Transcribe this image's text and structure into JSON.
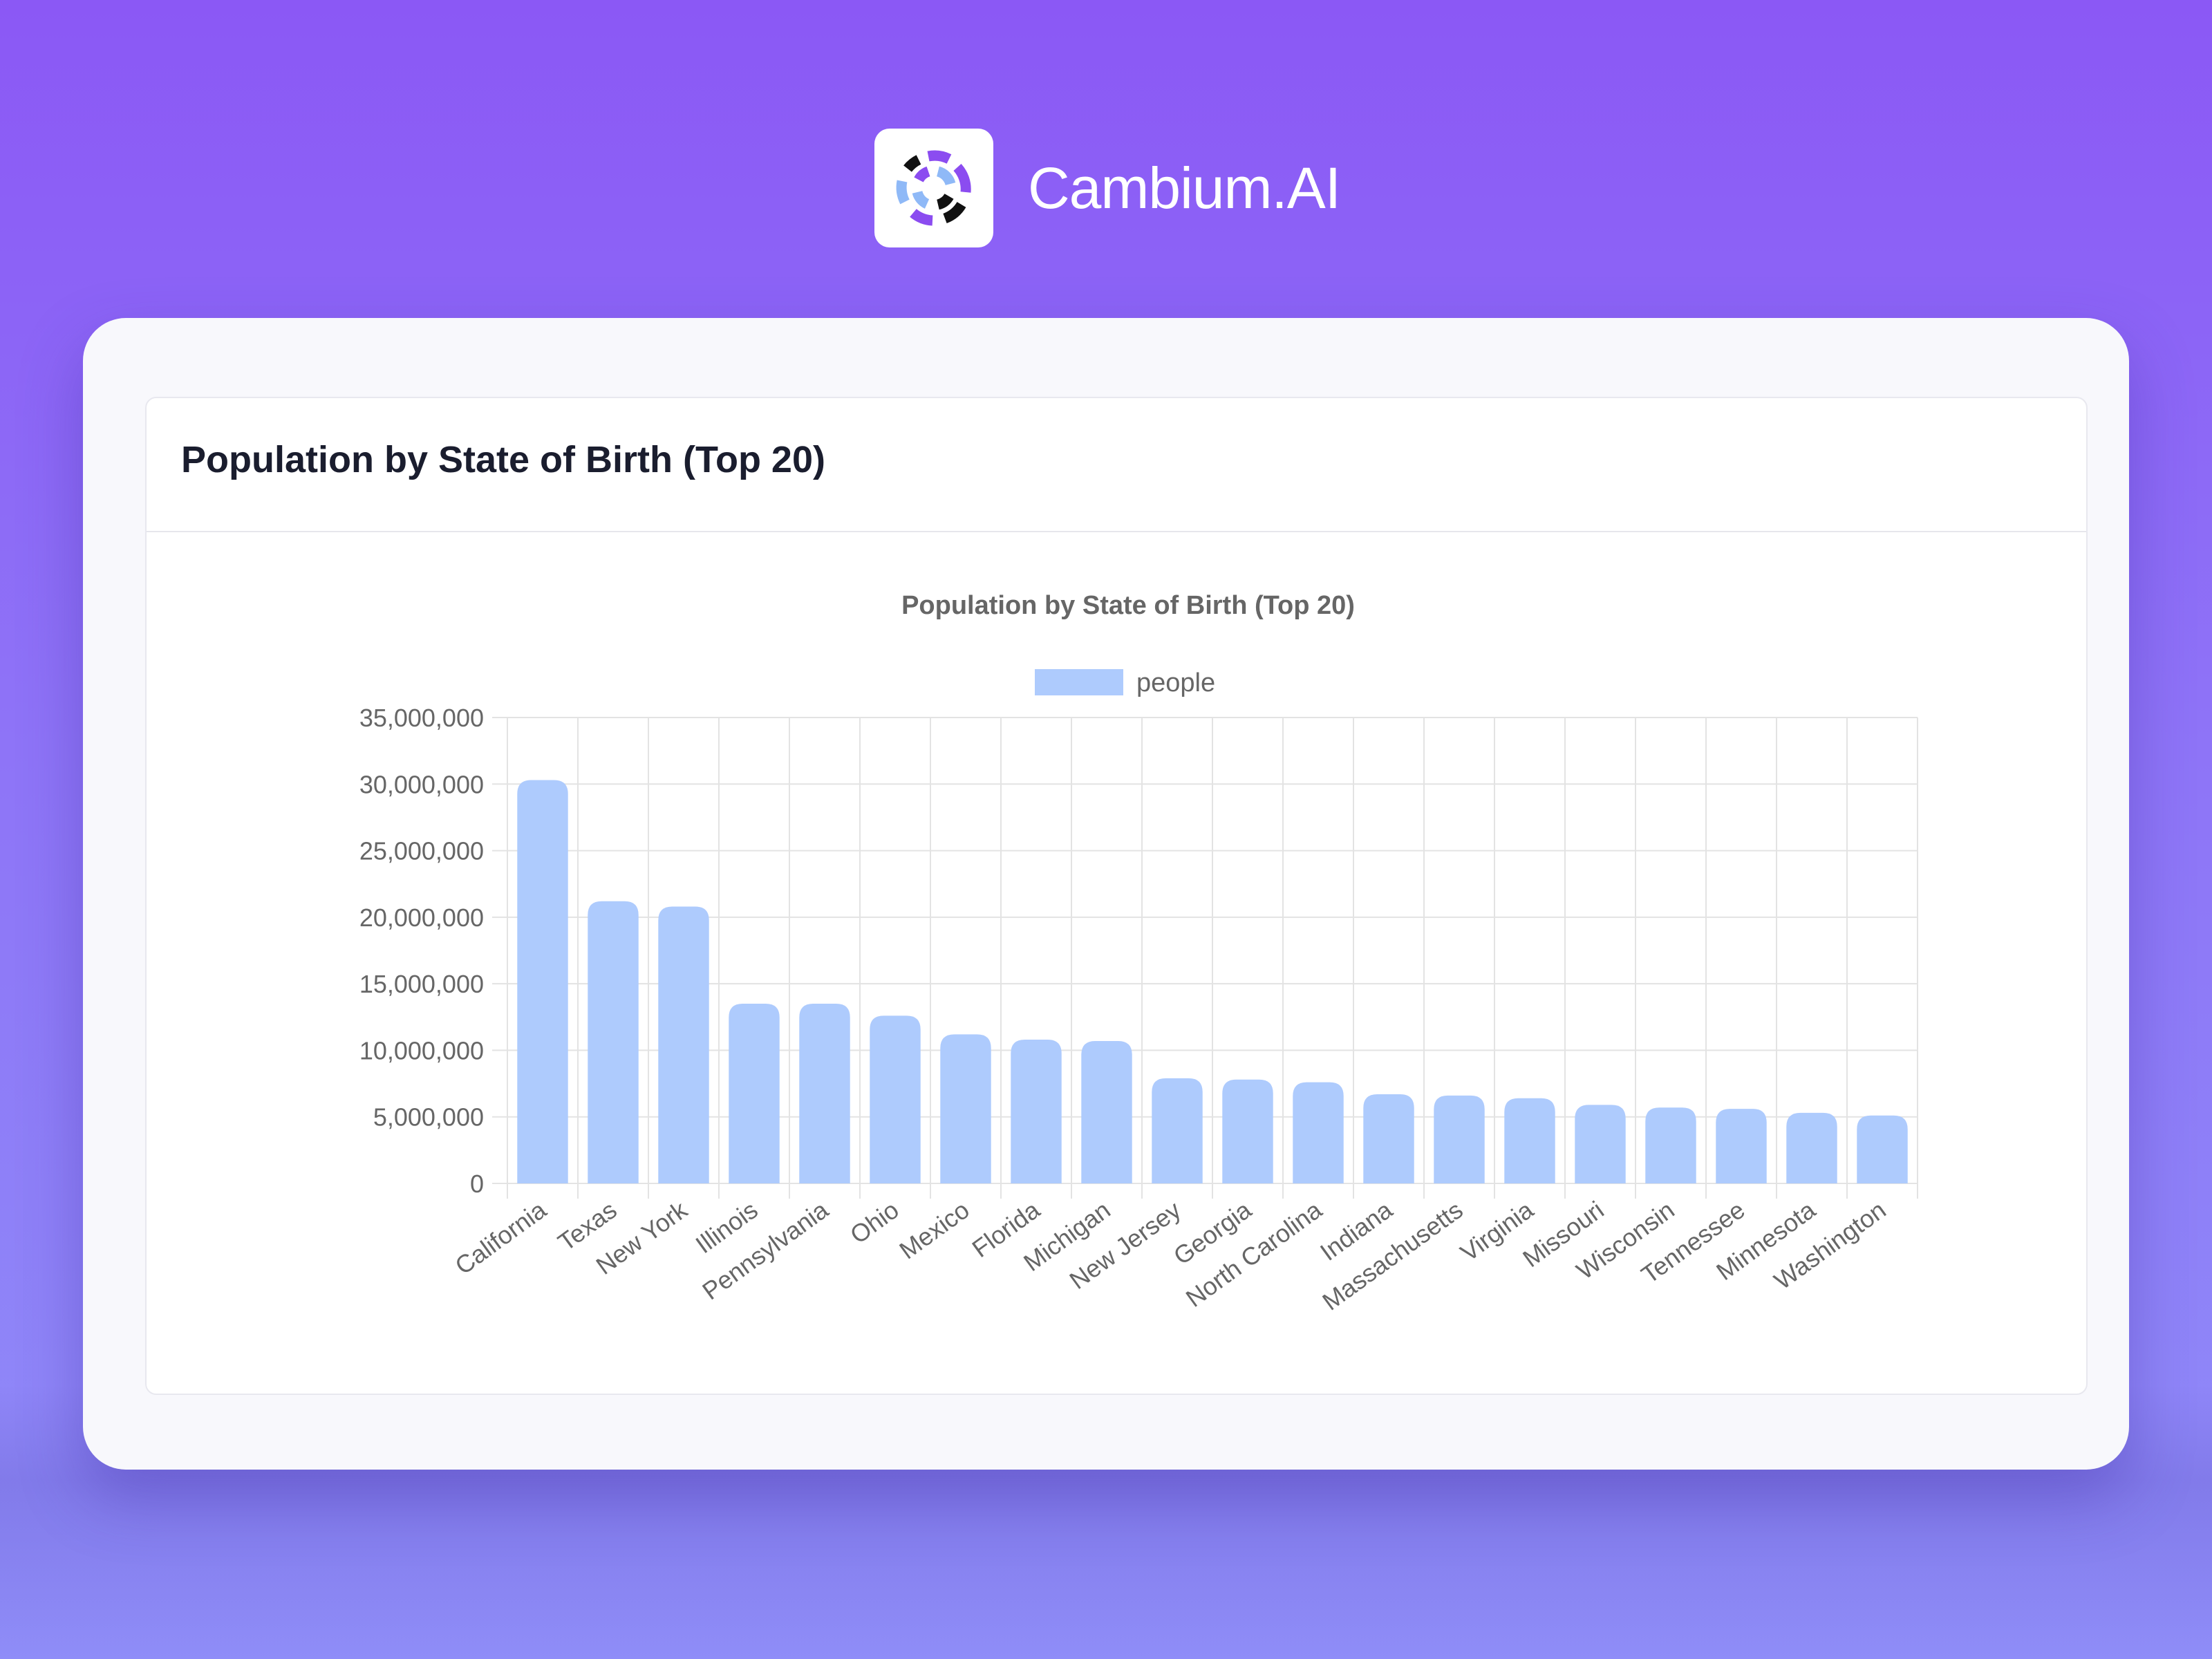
{
  "brand": {
    "name": "Cambium.AI",
    "logo_icon": "cambium-logo-icon"
  },
  "card": {
    "title": "Population by State of Birth (Top 20)"
  },
  "colors": {
    "background_top": "#8b58f5",
    "background_bottom": "#8f8df8",
    "bar_fill": "#aecbfd",
    "grid": "#e3e3e3",
    "axis_text": "#666666"
  },
  "chart_data": {
    "type": "bar",
    "title": "Population by State of Birth (Top 20)",
    "legend": {
      "label": "people",
      "position": "top"
    },
    "xlabel": "",
    "ylabel": "",
    "ylim": [
      0,
      35000000
    ],
    "yticks": [
      0,
      5000000,
      10000000,
      15000000,
      20000000,
      25000000,
      30000000,
      35000000
    ],
    "ytick_labels": [
      "0",
      "5,000,000",
      "10,000,000",
      "15,000,000",
      "20,000,000",
      "25,000,000",
      "30,000,000",
      "35,000,000"
    ],
    "grid": true,
    "categories": [
      "California",
      "Texas",
      "New York",
      "Illinois",
      "Pennsylvania",
      "Ohio",
      "Mexico",
      "Florida",
      "Michigan",
      "New Jersey",
      "Georgia",
      "North Carolina",
      "Indiana",
      "Massachusetts",
      "Virginia",
      "Missouri",
      "Wisconsin",
      "Tennessee",
      "Minnesota",
      "Washington"
    ],
    "series": [
      {
        "name": "people",
        "values": [
          30300000,
          21200000,
          20800000,
          13500000,
          13500000,
          12600000,
          11200000,
          10800000,
          10700000,
          7900000,
          7800000,
          7600000,
          6700000,
          6600000,
          6400000,
          5900000,
          5700000,
          5600000,
          5300000,
          5100000
        ]
      }
    ]
  }
}
